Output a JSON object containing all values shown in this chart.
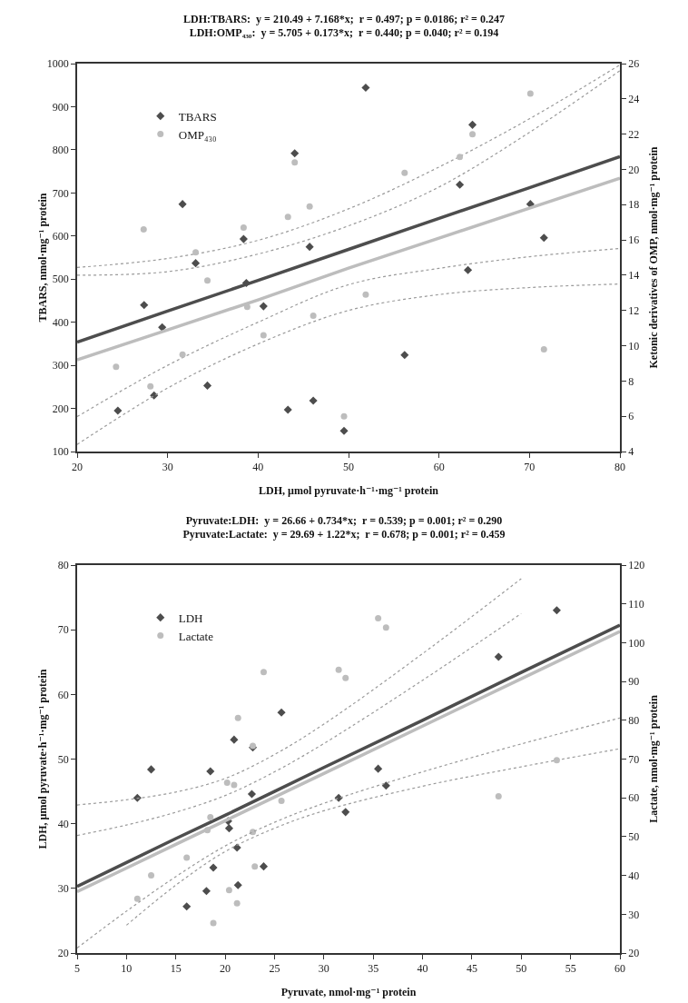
{
  "chart_data": [
    {
      "type": "scatter",
      "title": "LDH:TBARS:  y = 210.49 + 7.168*x;  r = 0.497; p = 0.0186; r² = 0.247",
      "subtitle": "LDH:OMP₄₃₀:  y = 5.705 + 0.173*x;  r = 0.440; p = 0.040; r² = 0.194",
      "xlabel": "LDH, µmol pyruvate·h⁻¹·mg⁻¹ protein",
      "ylabel": "TBARS, nmol·mg⁻¹ protein",
      "y2label": "Ketonic derivatives of OMP, nmol·mg⁻¹ protein",
      "xlim": [
        20,
        80
      ],
      "xticks": [
        20,
        30,
        40,
        50,
        60,
        70,
        80
      ],
      "ylim": [
        100,
        1000
      ],
      "yticks": [
        100,
        200,
        300,
        400,
        500,
        600,
        700,
        800,
        900,
        1000
      ],
      "y2lim": [
        4,
        26
      ],
      "y2ticks": [
        4,
        6,
        8,
        10,
        12,
        14,
        16,
        18,
        20,
        22,
        24,
        26
      ],
      "legend": "top left",
      "series": [
        {
          "name": "TBARS",
          "color": "#4d4d4d",
          "marker": "diamond",
          "x": [
            51.9,
            44.05,
            31.65,
            38.4,
            45.7,
            33.1,
            38.7,
            27.4,
            40.6,
            29.4,
            34.4,
            63.7,
            62.3,
            70.1,
            71.6,
            63.2,
            56.2,
            24.5,
            28.5,
            43.3,
            46.1,
            49.5
          ],
          "values": [
            944,
            792,
            674,
            593,
            575,
            537,
            491,
            440,
            437,
            388,
            253,
            858,
            719,
            674,
            596,
            521,
            324,
            195,
            230,
            197,
            218,
            148
          ]
        },
        {
          "name": "OMP₄₃₀",
          "color": "#bdbdbd",
          "marker": "circle",
          "axis": "y2",
          "x": [
            44.05,
            27.35,
            38.4,
            43.3,
            45.7,
            33.1,
            34.4,
            51.9,
            38.8,
            46.1,
            40.6,
            31.65,
            24.3,
            28.1,
            70.1,
            63.7,
            62.3,
            56.2,
            71.6,
            49.5
          ],
          "values": [
            20.4,
            16.6,
            16.7,
            17.3,
            17.9,
            15.3,
            13.7,
            12.9,
            12.2,
            11.7,
            10.6,
            9.5,
            8.8,
            7.7,
            24.3,
            22.0,
            20.7,
            19.8,
            9.8,
            6.0
          ]
        },
        {
          "type": "line",
          "color": "#4d4d4d",
          "line_style": "solid",
          "x": [
            20,
            30,
            40,
            50,
            60,
            70,
            80
          ],
          "values": [
            354,
            426,
            497,
            569,
            641,
            712,
            784
          ]
        },
        {
          "type": "line",
          "color": "#9a9a9a",
          "line_style": "dotted",
          "x": [
            20,
            30,
            40,
            50,
            60,
            70,
            80
          ],
          "values": [
            527,
            548,
            590,
            663,
            760,
            872,
            997
          ]
        },
        {
          "type": "line",
          "color": "#9a9a9a",
          "line_style": "dotted",
          "x": [
            20,
            30,
            40,
            50,
            60,
            70,
            80
          ],
          "values": [
            181,
            300,
            400,
            487,
            525,
            552,
            571
          ]
        },
        {
          "type": "line",
          "color": "#bdbdbd",
          "line_style": "solid",
          "axis": "y2",
          "x": [
            20,
            30,
            40,
            50,
            60,
            70,
            80
          ],
          "values": [
            9.2,
            10.9,
            12.6,
            14.4,
            16.1,
            17.8,
            19.5
          ]
        },
        {
          "type": "line",
          "color": "#9a9a9a",
          "line_style": "dotted",
          "axis": "y2",
          "x": [
            20,
            30,
            40,
            50,
            60,
            70,
            80
          ],
          "values": [
            14.0,
            14.2,
            15.2,
            16.8,
            19.0,
            22.1,
            25.6
          ]
        },
        {
          "type": "line",
          "color": "#9a9a9a",
          "line_style": "dotted",
          "axis": "y2",
          "x": [
            20,
            30,
            40,
            50,
            60,
            70,
            80
          ],
          "values": [
            4.4,
            7.6,
            10.1,
            12.0,
            12.9,
            13.3,
            13.5
          ]
        }
      ]
    },
    {
      "type": "scatter",
      "title": "Pyruvate:LDH:  y = 26.66 + 0.734*x;  r = 0.539; p = 0.001; r² = 0.290",
      "subtitle": "Pyruvate:Lactate:  y = 29.69 + 1.22*x;  r = 0.678; p = 0.001; r² = 0.459",
      "xlabel": "Pyruvate, nmol·mg⁻¹ protein",
      "ylabel": "LDH, µmol pyruvate·h⁻¹·mg⁻¹ protein",
      "y2label": "Lactate, nmol·mg⁻¹ protein",
      "xlim": [
        5,
        60
      ],
      "xticks": [
        5,
        10,
        15,
        20,
        25,
        30,
        35,
        40,
        45,
        50,
        55,
        60
      ],
      "ylim": [
        20,
        80
      ],
      "yticks": [
        20,
        30,
        40,
        50,
        60,
        70,
        80
      ],
      "y2lim": [
        20,
        120
      ],
      "y2ticks": [
        20,
        30,
        40,
        50,
        60,
        70,
        80,
        90,
        100,
        110,
        120
      ],
      "legend": "top left",
      "series": [
        {
          "name": "LDH",
          "color": "#4d4d4d",
          "marker": "diamond",
          "x": [
            11.1,
            12.5,
            18.5,
            20.9,
            22.8,
            25.7,
            22.7,
            20.4,
            20.3,
            21.2,
            18.8,
            23.9,
            21.3,
            18.1,
            16.1,
            31.5,
            32.2,
            35.5,
            36.3,
            47.7,
            53.6
          ],
          "values": [
            44.0,
            48.4,
            48.1,
            53.0,
            51.8,
            57.2,
            44.6,
            39.3,
            40.4,
            36.3,
            33.2,
            33.4,
            30.5,
            29.6,
            27.2,
            44.0,
            41.8,
            48.5,
            45.9,
            65.8,
            73.0
          ]
        },
        {
          "name": "Lactate",
          "color": "#bdbdbd",
          "marker": "circle",
          "axis": "y2",
          "x": [
            35.5,
            36.3,
            23.9,
            31.5,
            32.2,
            21.3,
            22.8,
            20.2,
            20.9,
            25.7,
            18.5,
            18.2,
            22.8,
            16.1,
            12.5,
            23.0,
            11.1,
            20.4,
            21.2,
            18.8,
            47.7,
            53.6
          ],
          "values": [
            106.3,
            103.9,
            92.4,
            93.0,
            90.9,
            80.6,
            73.4,
            63.9,
            63.3,
            59.2,
            55.0,
            51.7,
            51.2,
            44.6,
            40.0,
            42.3,
            34.0,
            36.2,
            32.8,
            27.7,
            60.4,
            69.7
          ]
        },
        {
          "type": "line",
          "color": "#4d4d4d",
          "line_style": "solid",
          "x": [
            5,
            10,
            15,
            20,
            25,
            30,
            40,
            50,
            60
          ],
          "values": [
            30.3,
            34.0,
            37.7,
            41.3,
            45.0,
            48.7,
            56.0,
            63.4,
            70.7
          ]
        },
        {
          "type": "line",
          "color": "#9a9a9a",
          "line_style": "dotted",
          "x": [
            5,
            10,
            15,
            20,
            25,
            30,
            40,
            50
          ],
          "values": [
            42.9,
            43.7,
            44.9,
            47.0,
            50.7,
            55.4,
            66.3,
            77.9
          ]
        },
        {
          "type": "line",
          "color": "#9a9a9a",
          "line_style": "dotted",
          "x": [
            10,
            15,
            20,
            25,
            30,
            40,
            50,
            60
          ],
          "values": [
            24.3,
            30.5,
            35.7,
            39.3,
            42.0,
            45.8,
            48.8,
            51.6
          ]
        },
        {
          "type": "line",
          "color": "#bdbdbd",
          "line_style": "solid",
          "axis": "y2",
          "x": [
            5,
            10,
            15,
            20,
            25,
            30,
            40,
            50,
            60
          ],
          "values": [
            35.8,
            41.9,
            48.0,
            54.1,
            60.2,
            66.3,
            78.5,
            90.7,
            102.9
          ]
        },
        {
          "type": "line",
          "color": "#9a9a9a",
          "line_style": "dotted",
          "axis": "y2",
          "x": [
            5,
            10,
            15,
            20,
            25,
            30,
            40,
            50
          ],
          "values": [
            50.3,
            53.0,
            56.3,
            60.6,
            66.7,
            74.0,
            90.3,
            107.5
          ]
        },
        {
          "type": "line",
          "color": "#9a9a9a",
          "line_style": "dotted",
          "axis": "y2",
          "x": [
            5,
            10,
            15,
            20,
            25,
            30,
            40,
            50,
            60
          ],
          "values": [
            21.3,
            30.8,
            39.7,
            47.6,
            53.7,
            58.6,
            66.7,
            73.9,
            80.6
          ]
        }
      ]
    }
  ]
}
